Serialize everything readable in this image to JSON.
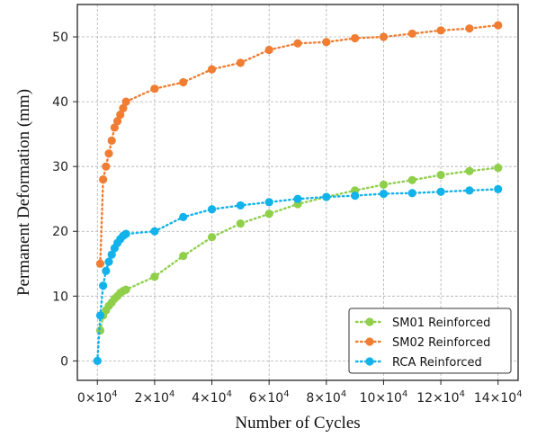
{
  "chart_data": {
    "type": "line",
    "xlabel": "Number of Cycles",
    "ylabel": "Permanent Deformation (mm)",
    "xlim": [
      -7000,
      147000
    ],
    "ylim": [
      -3,
      55
    ],
    "x_ticks": [
      0,
      20000,
      40000,
      60000,
      80000,
      100000,
      120000,
      140000
    ],
    "x_tick_labels": [
      {
        "mant": "0×10",
        "exp": "4"
      },
      {
        "mant": "2×10",
        "exp": "4"
      },
      {
        "mant": "4×10",
        "exp": "4"
      },
      {
        "mant": "6×10",
        "exp": "4"
      },
      {
        "mant": "8×10",
        "exp": "4"
      },
      {
        "mant": "10×10",
        "exp": "4"
      },
      {
        "mant": "12×10",
        "exp": "4"
      },
      {
        "mant": "14×10",
        "exp": "4"
      }
    ],
    "y_ticks": [
      0,
      10,
      20,
      30,
      40,
      50
    ],
    "y_tick_labels": [
      "0",
      "10",
      "20",
      "30",
      "40",
      "50"
    ],
    "grid": true,
    "legend_position": "bottom-right",
    "series": [
      {
        "name": "SM01 Reinforced",
        "color": "#8fcf4a",
        "line_style": "dotted",
        "x": [
          1000,
          2000,
          3000,
          4000,
          5000,
          6000,
          7000,
          8000,
          9000,
          10000,
          20000,
          30000,
          40000,
          50000,
          60000,
          70000,
          80000,
          90000,
          100000,
          110000,
          120000,
          130000,
          140000
        ],
        "y": [
          4.7,
          7.0,
          7.8,
          8.5,
          9.0,
          9.6,
          10.0,
          10.5,
          10.8,
          11.0,
          13.0,
          16.2,
          19.1,
          21.2,
          22.7,
          24.2,
          25.3,
          26.3,
          27.2,
          27.9,
          28.7,
          29.3,
          29.8
        ]
      },
      {
        "name": "SM02 Reinforced",
        "color": "#f07d32",
        "line_style": "dotted",
        "x": [
          1000,
          2000,
          3000,
          4000,
          5000,
          6000,
          7000,
          8000,
          9000,
          10000,
          20000,
          30000,
          40000,
          50000,
          60000,
          70000,
          80000,
          90000,
          100000,
          110000,
          120000,
          130000,
          140000
        ],
        "y": [
          15.0,
          28.0,
          30.0,
          32.0,
          34.0,
          36.0,
          37.0,
          38.0,
          39.0,
          40.0,
          42.0,
          43.0,
          45.0,
          46.0,
          48.0,
          49.0,
          49.2,
          49.8,
          50.0,
          50.5,
          51.0,
          51.3,
          51.8
        ]
      },
      {
        "name": "RCA Reinforced",
        "color": "#12b2ea",
        "line_style": "dotted",
        "x": [
          0,
          1000,
          2000,
          3000,
          4000,
          5000,
          6000,
          7000,
          8000,
          9000,
          10000,
          20000,
          30000,
          40000,
          50000,
          60000,
          70000,
          80000,
          90000,
          100000,
          110000,
          120000,
          130000,
          140000
        ],
        "y": [
          0.0,
          7.0,
          11.6,
          13.9,
          15.3,
          16.4,
          17.4,
          18.2,
          18.8,
          19.3,
          19.6,
          20.0,
          22.2,
          23.4,
          24.0,
          24.5,
          25.0,
          25.3,
          25.5,
          25.8,
          25.9,
          26.1,
          26.3,
          26.5
        ]
      }
    ]
  }
}
